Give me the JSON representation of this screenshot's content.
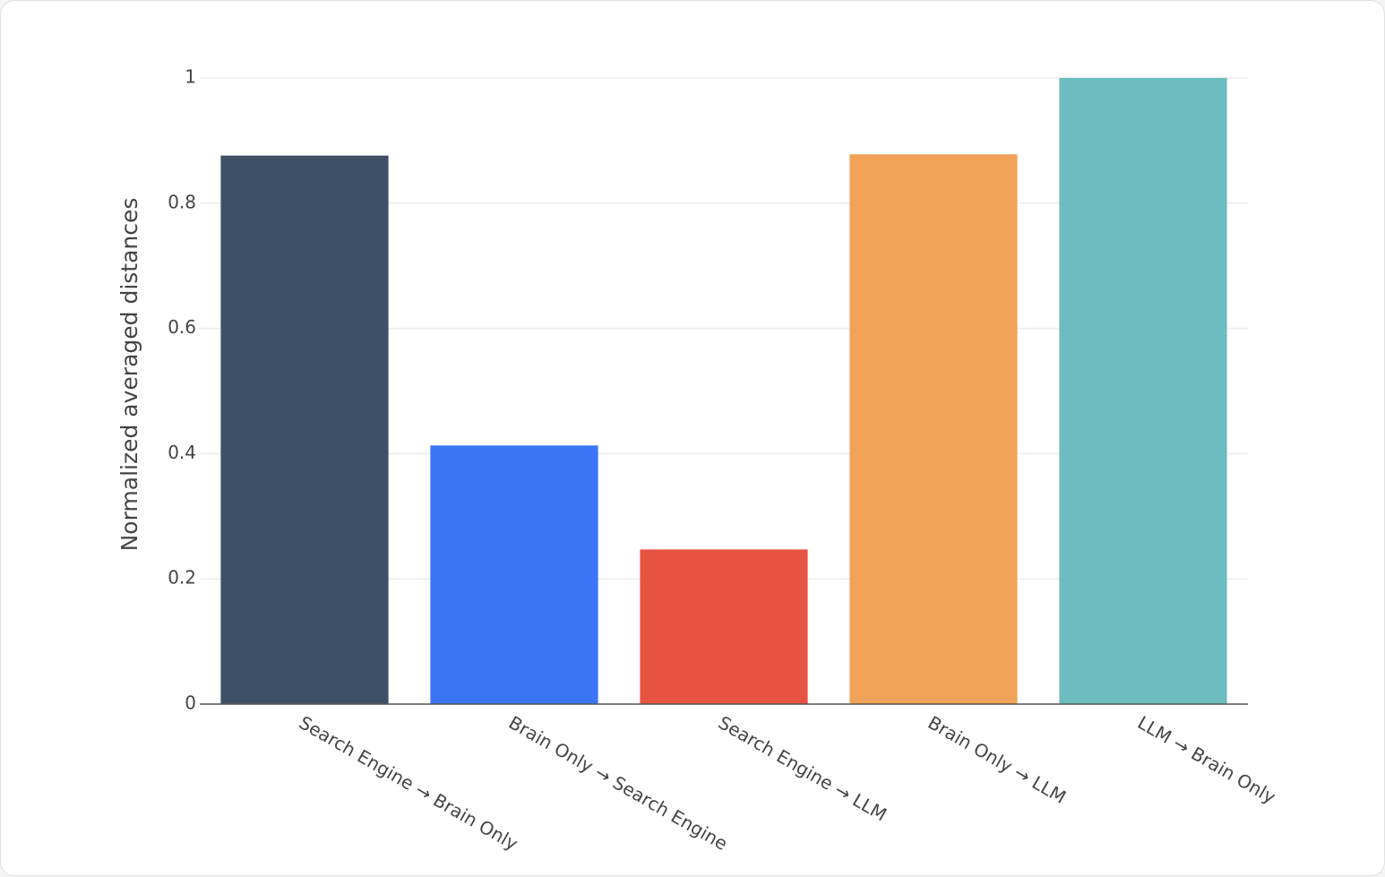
{
  "chart_data": {
    "type": "bar",
    "y_label": "Normalized averaged distances",
    "categories": [
      "Search Engine → Brain Only",
      "Brain Only → Search Engine",
      "Search Engine → LLM",
      "Brain Only → LLM",
      "LLM → Brain Only"
    ],
    "values": [
      0.876,
      0.413,
      0.247,
      0.878,
      1
    ],
    "colors": [
      "#3e5068",
      "#3a75f5",
      "#e75341",
      "#f0a256",
      "#6dbcbf"
    ],
    "ylim": [
      0,
      1
    ],
    "yticks": [
      0,
      0.2,
      0.4,
      0.6,
      0.8,
      1
    ],
    "grid": true
  }
}
